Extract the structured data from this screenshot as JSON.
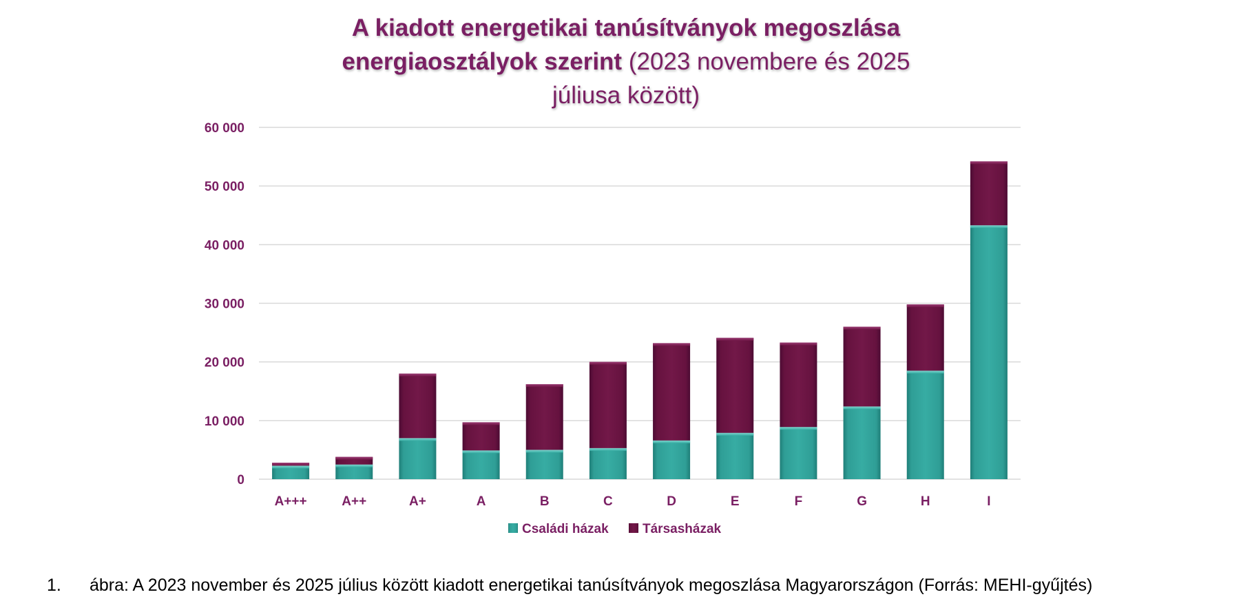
{
  "title": {
    "line1_bold": "A kiadott energetikai tanúsítványok megoszlása",
    "line2_bold": "energiaosztályok szerint",
    "line2_normal": " (2023 novembere és 2025",
    "line3_normal": "júliusa között)"
  },
  "caption": {
    "number": "1.",
    "text": "ábra: A 2023 november és 2025 július között kiadott energetikai tanúsítványok megoszlása Magyarországon (Forrás: MEHI-gyűjtés)"
  },
  "colors": {
    "accent": "#7a1f63",
    "series_family": "#2a9a92",
    "series_condo": "#6b1448",
    "gridline": "#d9d9d9"
  },
  "chart_data": {
    "type": "bar",
    "stacked": true,
    "categories": [
      "A+++",
      "A++",
      "A+",
      "A",
      "B",
      "C",
      "D",
      "E",
      "F",
      "G",
      "H",
      "I"
    ],
    "series": [
      {
        "name": "Családi házak",
        "values": [
          2300,
          2500,
          7000,
          4900,
          5000,
          5300,
          6600,
          7900,
          8900,
          12400,
          18500,
          43300
        ]
      },
      {
        "name": "Társasházak",
        "values": [
          500,
          1300,
          11000,
          4800,
          11200,
          14700,
          16600,
          16200,
          14400,
          13600,
          11300,
          10900
        ]
      }
    ],
    "ylim": [
      0,
      60000
    ],
    "yticks": [
      0,
      10000,
      20000,
      30000,
      40000,
      50000,
      60000
    ],
    "ytick_labels": [
      "0",
      "10 000",
      "20 000",
      "30 000",
      "40 000",
      "50 000",
      "60 000"
    ],
    "xlabel": "",
    "ylabel": "",
    "grid": true,
    "legend_position": "bottom"
  }
}
